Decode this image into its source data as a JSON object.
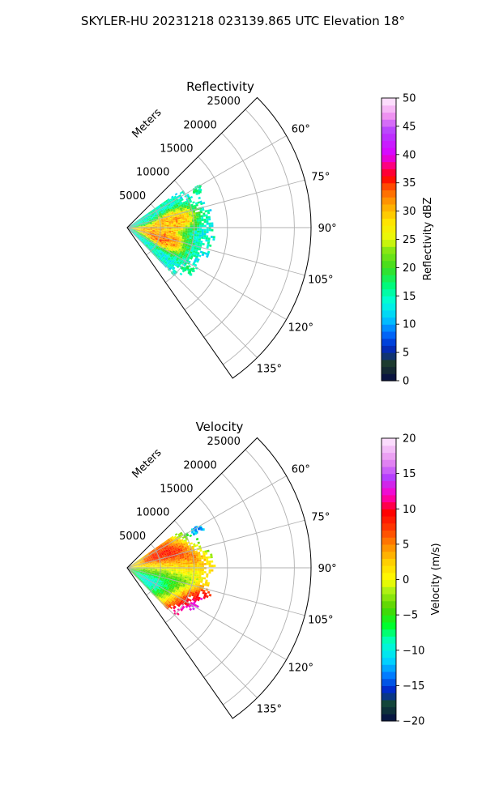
{
  "figure": {
    "title": "SKYLER-HU  20231218  023139.865 UTC Elevation 18°"
  },
  "chart_data": [
    {
      "type": "heatmap",
      "projection": "polar-sector",
      "title": "Reflectivity",
      "range_axis_label": "Meters",
      "range_ticks": [
        5000,
        10000,
        15000,
        20000,
        25000
      ],
      "range_tick_labels": [
        "5000",
        "10000",
        "15000",
        "20000",
        "25000"
      ],
      "rlim": [
        0,
        27500
      ],
      "azimuth_range_deg": [
        45,
        145
      ],
      "azimuth_ticks_deg": [
        60,
        75,
        90,
        105,
        120,
        135
      ],
      "azimuth_tick_labels": [
        "60°",
        "75°",
        "90°",
        "105°",
        "120°",
        "135°"
      ],
      "grid": true,
      "colorbar": {
        "label": "Reflectivity dBZ",
        "vmin": 0,
        "vmax": 50,
        "ticks": [
          0,
          5,
          10,
          15,
          20,
          25,
          30,
          35,
          40,
          45,
          50
        ],
        "tick_labels": [
          "0",
          "5",
          "10",
          "15",
          "20",
          "25",
          "30",
          "35",
          "40",
          "45",
          "50"
        ]
      },
      "data_extent": {
        "azimuth_deg": [
          55,
          135
        ],
        "range_m": [
          0,
          13500
        ]
      },
      "features": [
        {
          "azimuth_deg": 80,
          "range_m": 7000,
          "value": 35
        },
        {
          "azimuth_deg": 107,
          "range_m": 5500,
          "value": 38
        },
        {
          "azimuth_deg": 95,
          "range_m": 2500,
          "value": 33
        },
        {
          "azimuth_deg": 62,
          "range_m": 12000,
          "value": 16
        },
        {
          "azimuth_deg": 125,
          "range_m": 11000,
          "value": 17
        }
      ]
    },
    {
      "type": "heatmap",
      "projection": "polar-sector",
      "title": "Velocity",
      "range_axis_label": "Meters",
      "range_ticks": [
        5000,
        10000,
        15000,
        20000,
        25000
      ],
      "range_tick_labels": [
        "5000",
        "10000",
        "15000",
        "20000",
        "25000"
      ],
      "rlim": [
        0,
        27500
      ],
      "azimuth_range_deg": [
        45,
        145
      ],
      "azimuth_ticks_deg": [
        60,
        75,
        90,
        105,
        120,
        135
      ],
      "azimuth_tick_labels": [
        "60°",
        "75°",
        "90°",
        "105°",
        "120°",
        "135°"
      ],
      "grid": true,
      "colorbar": {
        "label": "Velocity (m/s)",
        "vmin": -20,
        "vmax": 20,
        "ticks": [
          -20,
          -15,
          -10,
          -5,
          0,
          5,
          10,
          15,
          20
        ],
        "tick_labels": [
          "−20",
          "−15",
          "−10",
          "−5",
          "0",
          "5",
          "10",
          "15",
          "20"
        ]
      },
      "data_extent": {
        "azimuth_deg": [
          55,
          135
        ],
        "range_m": [
          0,
          13500
        ]
      },
      "features": [
        {
          "azimuth_deg": 70,
          "range_m": 8000,
          "value": 10
        },
        {
          "azimuth_deg": 88,
          "range_m": 7000,
          "value": 3
        },
        {
          "azimuth_deg": 100,
          "range_m": 6000,
          "value": -5
        },
        {
          "azimuth_deg": 118,
          "range_m": 6000,
          "value": -12
        },
        {
          "azimuth_deg": 122,
          "range_m": 10000,
          "value": 15
        },
        {
          "azimuth_deg": 62,
          "range_m": 12000,
          "value": -12
        }
      ]
    }
  ]
}
